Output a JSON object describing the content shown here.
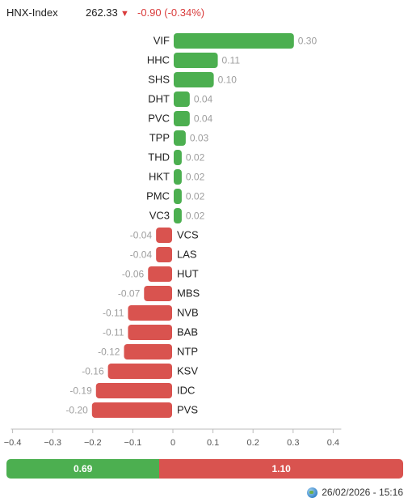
{
  "header": {
    "index_name": "HNX-Index",
    "index_value": "262.33",
    "index_change": "-0.90 (-0.34%)",
    "arrow_icon": "down-triangle-icon"
  },
  "colors": {
    "up": "#4caf50",
    "down": "#d9534f",
    "label": "#9e9e9e",
    "axis": "#555555"
  },
  "chart_data": {
    "type": "bar",
    "orientation": "horizontal",
    "categories": [
      "VIF",
      "HHC",
      "SHS",
      "DHT",
      "PVC",
      "TPP",
      "THD",
      "HKT",
      "PMC",
      "VC3",
      "VCS",
      "LAS",
      "HUT",
      "MBS",
      "NVB",
      "BAB",
      "NTP",
      "KSV",
      "IDC",
      "PVS"
    ],
    "values": [
      0.3,
      0.11,
      0.1,
      0.04,
      0.04,
      0.03,
      0.02,
      0.02,
      0.02,
      0.02,
      -0.04,
      -0.04,
      -0.06,
      -0.07,
      -0.11,
      -0.11,
      -0.12,
      -0.16,
      -0.19,
      -0.2
    ],
    "value_labels": [
      "0.30",
      "0.11",
      "0.10",
      "0.04",
      "0.04",
      "0.03",
      "0.02",
      "0.02",
      "0.02",
      "0.02",
      "-0.04",
      "-0.04",
      "-0.06",
      "-0.07",
      "-0.11",
      "-0.11",
      "-0.12",
      "-0.16",
      "-0.19",
      "-0.20"
    ],
    "xlim": [
      -0.4,
      0.4
    ],
    "xticks": [
      -0.4,
      -0.3,
      -0.2,
      -0.1,
      0,
      0.1,
      0.2,
      0.3,
      0.4
    ],
    "xtick_labels": [
      "−0.4",
      "−0.3",
      "−0.2",
      "−0.1",
      "0",
      "0.1",
      "0.2",
      "0.3",
      "0.4"
    ],
    "title": "",
    "xlabel": "",
    "ylabel": "",
    "grid": false
  },
  "summary": {
    "up_total": "0.69",
    "down_total": "1.10",
    "up_value": 0.69,
    "down_value": 1.1
  },
  "footer": {
    "timestamp": "26/02/2026 - 15:16",
    "icon": "globe-icon"
  }
}
